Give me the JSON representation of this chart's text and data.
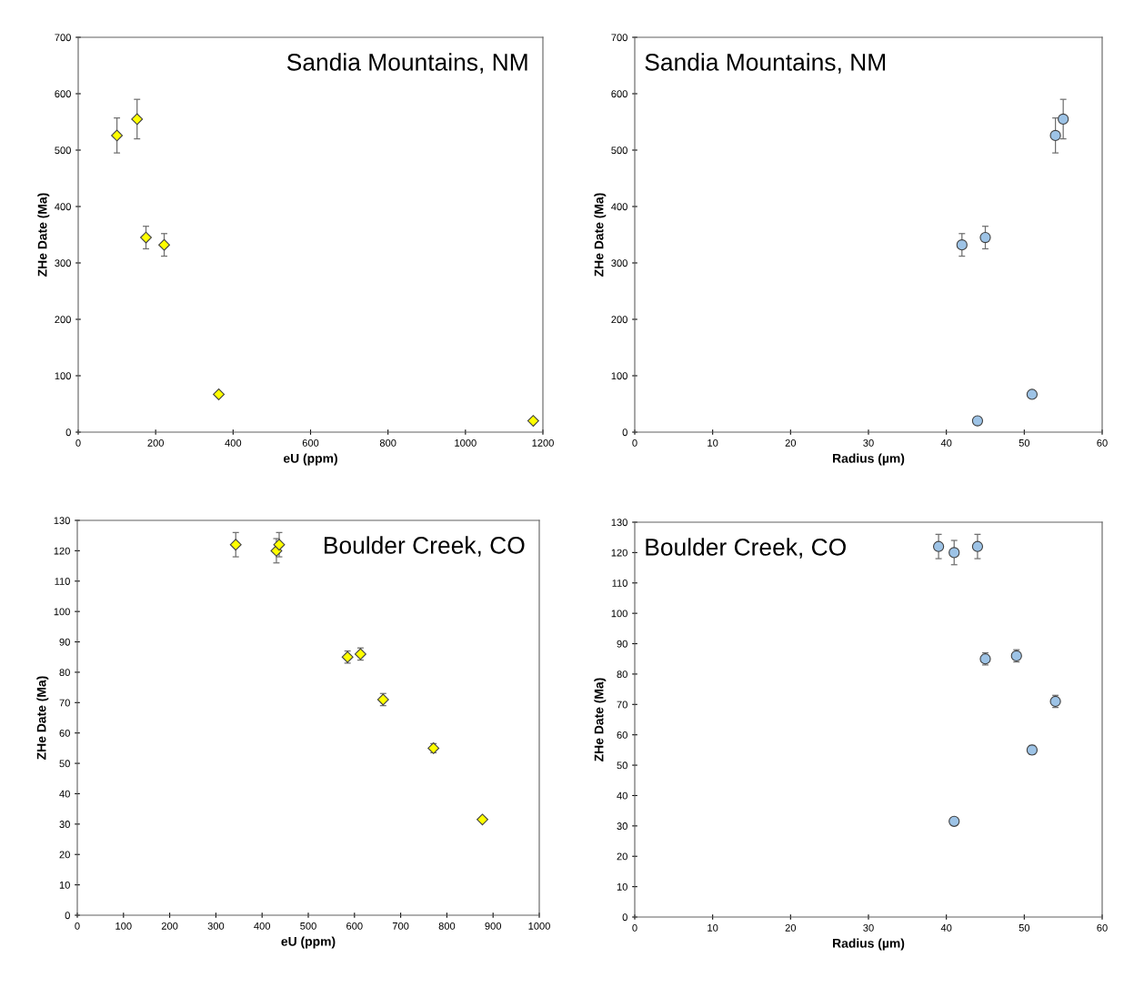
{
  "chart_data": [
    {
      "type": "scatter",
      "title": "Sandia Mountains, NM",
      "xlabel": "eU (ppm)",
      "ylabel": "ZHe Date (Ma)",
      "xlim": [
        0,
        1200
      ],
      "xticks": [
        0,
        200,
        400,
        600,
        800,
        1000,
        1200
      ],
      "ylim": [
        0,
        700
      ],
      "yticks": [
        0,
        100,
        200,
        300,
        400,
        500,
        600,
        700
      ],
      "marker": "diamond",
      "grid": false,
      "legend": false,
      "series": [
        {
          "color": "#ffff00",
          "x": [
            100,
            152,
            175,
            222,
            363,
            1175
          ],
          "values": [
            526,
            555,
            345,
            332,
            67,
            20
          ],
          "errors": [
            31,
            35,
            20,
            20,
            null,
            null
          ]
        }
      ]
    },
    {
      "type": "scatter",
      "title": "Sandia Mountains, NM",
      "xlabel": "Radius (µm)",
      "ylabel": "ZHe Date (Ma)",
      "xlim": [
        0,
        60
      ],
      "xticks": [
        0,
        10,
        20,
        30,
        40,
        50,
        60
      ],
      "ylim": [
        0,
        700
      ],
      "yticks": [
        0,
        100,
        200,
        300,
        400,
        500,
        600,
        700
      ],
      "marker": "circle",
      "grid": false,
      "legend": false,
      "series": [
        {
          "color": "#9dc3e6",
          "x": [
            54,
            55,
            45,
            42,
            51,
            44
          ],
          "values": [
            526,
            555,
            345,
            332,
            67,
            20
          ],
          "errors": [
            31,
            35,
            20,
            20,
            null,
            null
          ]
        }
      ]
    },
    {
      "type": "scatter",
      "title": "Boulder Creek, CO",
      "xlabel": "eU (ppm)",
      "ylabel": "ZHe Date (Ma)",
      "xlim": [
        0,
        1000
      ],
      "xticks": [
        0,
        100,
        200,
        300,
        400,
        500,
        600,
        700,
        800,
        900,
        1000
      ],
      "ylim": [
        0,
        130
      ],
      "yticks": [
        0,
        10,
        20,
        30,
        40,
        50,
        60,
        70,
        80,
        90,
        100,
        110,
        120,
        130
      ],
      "marker": "diamond",
      "grid": false,
      "legend": false,
      "series": [
        {
          "color": "#ffff00",
          "x": [
            343,
            431,
            437,
            585,
            613,
            662,
            771,
            877
          ],
          "values": [
            122,
            120,
            122,
            85,
            86,
            71,
            55,
            31.5
          ],
          "errors": [
            4,
            4,
            4,
            2,
            2,
            2,
            1.5,
            null
          ]
        }
      ]
    },
    {
      "type": "scatter",
      "title": "Boulder Creek, CO",
      "xlabel": "Radius (µm)",
      "ylabel": "ZHe Date (Ma)",
      "xlim": [
        0,
        60
      ],
      "xticks": [
        0,
        10,
        20,
        30,
        40,
        50,
        60
      ],
      "ylim": [
        0,
        130
      ],
      "yticks": [
        0,
        10,
        20,
        30,
        40,
        50,
        60,
        70,
        80,
        90,
        100,
        110,
        120,
        130
      ],
      "marker": "circle",
      "grid": false,
      "legend": false,
      "series": [
        {
          "color": "#9dc3e6",
          "x": [
            39,
            41,
            44,
            45,
            49,
            54,
            51,
            41
          ],
          "values": [
            122,
            120,
            122,
            85,
            86,
            71,
            55,
            31.5
          ],
          "errors": [
            4,
            4,
            4,
            2,
            2,
            2,
            1.5,
            null
          ]
        }
      ]
    }
  ]
}
